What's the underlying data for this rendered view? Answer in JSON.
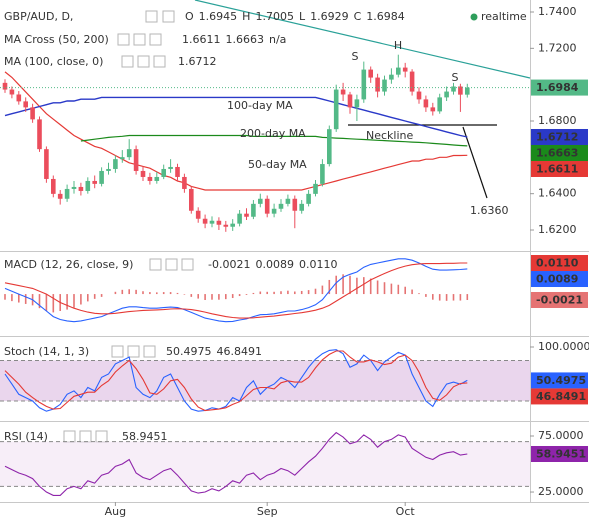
{
  "chart_data": [
    {
      "type": "candlestick",
      "title": "GBP/AUD, D,",
      "status": "realtime",
      "ohlc_keys": [
        "O",
        "H",
        "L",
        "C"
      ],
      "ohlc_last": [
        "1.6945",
        "1.7005",
        "1.6929",
        "1.6984"
      ],
      "indicators": [
        {
          "label": "MA Cross (50, 200)",
          "readouts": [
            "1.6611",
            "1.6663",
            "n/a"
          ]
        },
        {
          "label": "MA (100, close, 0)",
          "readouts": [
            "1.6712"
          ]
        }
      ],
      "categories": [
        null,
        null,
        null,
        null,
        null,
        null,
        null,
        null,
        null,
        null,
        null,
        null,
        null,
        null,
        null,
        null,
        "Aug",
        null,
        null,
        null,
        null,
        null,
        null,
        null,
        null,
        null,
        null,
        null,
        null,
        null,
        null,
        null,
        null,
        null,
        null,
        null,
        null,
        null,
        "Sep",
        null,
        null,
        null,
        null,
        null,
        null,
        null,
        null,
        null,
        null,
        null,
        null,
        null,
        null,
        null,
        null,
        null,
        null,
        null,
        "Oct",
        null,
        null,
        null,
        null,
        null,
        null,
        null,
        null,
        null
      ],
      "open": [
        1.701,
        1.6973,
        1.6946,
        1.6908,
        1.6875,
        1.6809,
        1.6645,
        1.6481,
        1.6399,
        1.6372,
        1.6426,
        1.6437,
        1.6415,
        1.647,
        1.6454,
        1.6525,
        1.6536,
        1.659,
        1.6601,
        1.6645,
        1.6525,
        1.6492,
        1.647,
        1.6492,
        1.6536,
        1.6547,
        1.6492,
        1.6426,
        1.6306,
        1.6262,
        1.6235,
        1.6251,
        1.6229,
        1.6218,
        1.6235,
        1.629,
        1.6273,
        1.6344,
        1.6372,
        1.629,
        1.6317,
        1.6344,
        1.6372,
        1.6306,
        1.6344,
        1.6399,
        1.6454,
        1.6563,
        1.6755,
        1.6973,
        1.6946,
        1.6875,
        1.6919,
        1.7083,
        1.7039,
        1.6962,
        1.7028,
        1.7055,
        1.7094,
        1.7072,
        1.6962,
        1.6919,
        1.6875,
        1.6853,
        1.693,
        1.6962,
        1.699,
        1.6945
      ],
      "high": [
        1.703,
        1.699,
        1.6965,
        1.693,
        1.6895,
        1.6825,
        1.666,
        1.65,
        1.642,
        1.645,
        1.647,
        1.646,
        1.649,
        1.65,
        1.6545,
        1.657,
        1.661,
        1.664,
        1.67,
        1.6665,
        1.655,
        1.6515,
        1.652,
        1.656,
        1.659,
        1.6565,
        1.651,
        1.644,
        1.6325,
        1.6285,
        1.6275,
        1.627,
        1.625,
        1.626,
        1.631,
        1.632,
        1.6365,
        1.64,
        1.639,
        1.6345,
        1.637,
        1.6395,
        1.639,
        1.6365,
        1.642,
        1.6475,
        1.659,
        1.6775,
        1.7,
        1.701,
        1.696,
        1.6945,
        1.7127,
        1.71,
        1.706,
        1.705,
        1.709,
        1.7165,
        1.712,
        1.7085,
        1.6985,
        1.694,
        1.69,
        1.695,
        1.699,
        1.701,
        1.7005,
        1.7005
      ],
      "low": [
        1.6955,
        1.6925,
        1.689,
        1.685,
        1.679,
        1.663,
        1.646,
        1.638,
        1.634,
        1.6355,
        1.64,
        1.639,
        1.64,
        1.643,
        1.644,
        1.6505,
        1.6515,
        1.657,
        1.6585,
        1.6505,
        1.647,
        1.645,
        1.6455,
        1.648,
        1.6515,
        1.647,
        1.6405,
        1.629,
        1.624,
        1.621,
        1.6215,
        1.62,
        1.619,
        1.6195,
        1.622,
        1.6255,
        1.626,
        1.6325,
        1.627,
        1.627,
        1.63,
        1.633,
        1.621,
        1.629,
        1.633,
        1.6385,
        1.644,
        1.655,
        1.674,
        1.691,
        1.684,
        1.68,
        1.69,
        1.701,
        1.693,
        1.694,
        1.7005,
        1.704,
        1.704,
        1.694,
        1.6895,
        1.685,
        1.683,
        1.684,
        1.691,
        1.6945,
        1.685,
        1.6929
      ],
      "close": [
        1.6973,
        1.6946,
        1.6908,
        1.6875,
        1.6809,
        1.6645,
        1.6481,
        1.6399,
        1.6372,
        1.6426,
        1.6437,
        1.6415,
        1.647,
        1.6454,
        1.6525,
        1.6536,
        1.659,
        1.6601,
        1.6645,
        1.6525,
        1.6492,
        1.647,
        1.6492,
        1.6536,
        1.6547,
        1.6492,
        1.6426,
        1.6306,
        1.6262,
        1.6235,
        1.6251,
        1.6229,
        1.6218,
        1.6235,
        1.629,
        1.6273,
        1.6344,
        1.6372,
        1.629,
        1.6317,
        1.6344,
        1.6372,
        1.6306,
        1.6344,
        1.6399,
        1.6454,
        1.6563,
        1.6755,
        1.6973,
        1.6946,
        1.6875,
        1.6919,
        1.7083,
        1.7039,
        1.6962,
        1.7028,
        1.7055,
        1.7094,
        1.7072,
        1.6962,
        1.6919,
        1.6875,
        1.6853,
        1.693,
        1.6962,
        1.699,
        1.6945,
        1.6984
      ],
      "up_color": "#53b987",
      "down_color": "#eb4d5c",
      "ylim": [
        1.609,
        1.7466
      ],
      "yticks": [
        {
          "value": 1.74,
          "label": "1.7400"
        },
        {
          "value": 1.72,
          "label": "1.7200"
        },
        {
          "value": 1.68,
          "label": "1.6800"
        },
        {
          "value": 1.64,
          "label": "1.6400"
        },
        {
          "value": 1.62,
          "label": "1.6200"
        }
      ],
      "series": [
        {
          "name": "50-day MA",
          "color": "#e53935",
          "values": [
            1.707,
            1.704,
            1.7,
            1.696,
            1.692,
            1.688,
            1.684,
            1.681,
            1.678,
            1.675,
            1.672,
            1.67,
            1.668,
            1.666,
            1.665,
            1.663,
            1.661,
            1.659,
            1.657,
            1.656,
            1.655,
            1.654,
            1.652,
            1.65,
            1.649,
            1.647,
            1.646,
            1.644,
            1.643,
            1.642,
            1.642,
            1.642,
            1.642,
            1.642,
            1.642,
            1.642,
            1.642,
            1.642,
            1.642,
            1.642,
            1.642,
            1.642,
            1.642,
            1.642,
            1.643,
            1.644,
            1.645,
            1.646,
            1.647,
            1.648,
            1.649,
            1.65,
            1.651,
            1.652,
            1.653,
            1.654,
            1.655,
            1.656,
            1.657,
            1.658,
            1.658,
            1.659,
            1.659,
            1.66,
            1.66,
            1.661,
            1.661,
            1.6611
          ]
        },
        {
          "name": "200-day MA",
          "color": "#1b8a1b",
          "values": [
            null,
            null,
            null,
            null,
            null,
            null,
            null,
            null,
            null,
            null,
            null,
            1.669,
            1.6695,
            1.67,
            1.6705,
            1.671,
            1.6713,
            1.6716,
            1.672,
            1.672,
            1.672,
            1.672,
            1.672,
            1.672,
            1.672,
            1.672,
            1.672,
            1.672,
            1.672,
            1.672,
            1.672,
            1.672,
            1.672,
            1.672,
            1.672,
            1.672,
            1.6715,
            1.6715,
            1.6715,
            1.6715,
            1.6715,
            1.6715,
            1.6715,
            1.6715,
            1.6715,
            1.6715,
            1.671,
            1.6708,
            1.6706,
            1.6704,
            1.6702,
            1.67,
            1.6698,
            1.6696,
            1.6694,
            1.6692,
            1.669,
            1.6688,
            1.6686,
            1.6684,
            1.6682,
            1.668,
            1.6677,
            1.6674,
            1.6671,
            1.6668,
            1.6665,
            1.6663
          ]
        },
        {
          "name": "100-day MA",
          "color": "#2a39c8",
          "values": [
            1.683,
            1.684,
            1.685,
            1.686,
            1.687,
            1.688,
            1.689,
            1.69,
            1.69,
            1.691,
            1.691,
            1.692,
            1.692,
            1.692,
            1.693,
            1.693,
            1.693,
            1.693,
            1.693,
            1.693,
            1.693,
            1.693,
            1.693,
            1.693,
            1.693,
            1.693,
            1.693,
            1.693,
            1.693,
            1.693,
            1.693,
            1.693,
            1.693,
            1.693,
            1.693,
            1.693,
            1.693,
            1.693,
            1.693,
            1.693,
            1.693,
            1.693,
            1.693,
            1.693,
            1.693,
            1.693,
            1.692,
            1.691,
            1.69,
            1.689,
            1.688,
            1.687,
            1.686,
            1.685,
            1.684,
            1.683,
            1.682,
            1.681,
            1.68,
            1.679,
            1.678,
            1.677,
            1.676,
            1.675,
            1.674,
            1.673,
            1.672,
            1.6712
          ]
        }
      ],
      "annotations": [
        "S",
        "H",
        "S",
        "Neckline",
        "1.6360"
      ]
    },
    {
      "type": "line",
      "title": "MACD (12, 26, close, 9)",
      "readouts": [
        "-0.0021",
        "0.0089",
        "0.0110"
      ],
      "ylim": [
        -0.0145,
        0.0149
      ],
      "series": [
        {
          "color": "#2962ff",
          "values": [
            0.002,
            0.001,
            0.0,
            -0.001,
            -0.002,
            -0.004,
            -0.006,
            -0.008,
            -0.009,
            -0.0095,
            -0.0098,
            -0.0095,
            -0.009,
            -0.0085,
            -0.008,
            -0.007,
            -0.006,
            -0.005,
            -0.0045,
            -0.0045,
            -0.0048,
            -0.005,
            -0.005,
            -0.0048,
            -0.0046,
            -0.0048,
            -0.0055,
            -0.0065,
            -0.0075,
            -0.0085,
            -0.009,
            -0.0095,
            -0.0098,
            -0.0097,
            -0.0092,
            -0.0088,
            -0.008,
            -0.0073,
            -0.0072,
            -0.007,
            -0.0065,
            -0.006,
            -0.006,
            -0.0055,
            -0.0048,
            -0.0038,
            -0.002,
            0.001,
            0.004,
            0.006,
            0.007,
            0.0078,
            0.0095,
            0.0105,
            0.011,
            0.0115,
            0.012,
            0.0125,
            0.0125,
            0.012,
            0.011,
            0.0098,
            0.0088,
            0.0085,
            0.0085,
            0.0086,
            0.0087,
            0.0089
          ]
        },
        {
          "color": "#e53935",
          "values": [
            0.004,
            0.0035,
            0.003,
            0.0025,
            0.002,
            0.001,
            0.0,
            -0.0015,
            -0.003,
            -0.004,
            -0.005,
            -0.0058,
            -0.0064,
            -0.0068,
            -0.007,
            -0.007,
            -0.0068,
            -0.0065,
            -0.0062,
            -0.006,
            -0.0058,
            -0.0057,
            -0.0056,
            -0.0055,
            -0.0053,
            -0.0052,
            -0.0053,
            -0.0055,
            -0.0059,
            -0.0064,
            -0.007,
            -0.0075,
            -0.008,
            -0.0083,
            -0.0085,
            -0.0085,
            -0.0084,
            -0.0082,
            -0.008,
            -0.0078,
            -0.0075,
            -0.0072,
            -0.0069,
            -0.0066,
            -0.0062,
            -0.0057,
            -0.005,
            -0.004,
            -0.0025,
            -0.001,
            0.0005,
            0.002,
            0.0035,
            0.005,
            0.0062,
            0.0073,
            0.0083,
            0.0092,
            0.0099,
            0.0104,
            0.0107,
            0.0108,
            0.0108,
            0.0108,
            0.0109,
            0.0109,
            0.011,
            0.011
          ]
        },
        {
          "type": "histogram",
          "color": "#e57373",
          "values": [
            -0.002,
            -0.0025,
            -0.003,
            -0.0035,
            -0.004,
            -0.005,
            -0.006,
            -0.0065,
            -0.006,
            -0.0055,
            -0.0048,
            -0.0037,
            -0.0026,
            -0.0017,
            -0.001,
            0.0,
            0.0008,
            0.0015,
            0.0017,
            0.0015,
            0.001,
            0.0007,
            0.0006,
            0.0007,
            0.0007,
            0.0004,
            -0.0002,
            -0.001,
            -0.0016,
            -0.0021,
            -0.002,
            -0.002,
            -0.0018,
            -0.0014,
            -0.0007,
            -0.0003,
            0.0004,
            0.0009,
            0.0008,
            0.0008,
            0.001,
            0.0012,
            0.0009,
            0.0011,
            0.0014,
            0.0019,
            0.003,
            0.005,
            0.0065,
            0.007,
            0.0065,
            0.0058,
            0.006,
            0.0055,
            0.0048,
            0.0042,
            0.0037,
            0.0033,
            0.0026,
            0.0016,
            0.0003,
            -0.001,
            -0.002,
            -0.0023,
            -0.0024,
            -0.0023,
            -0.0023,
            -0.0021
          ]
        }
      ]
    },
    {
      "type": "line",
      "title": "Stoch (14, 1, 3)",
      "readouts": [
        "50.4975",
        "46.8491"
      ],
      "ylim": [
        -8.1,
        114.8
      ],
      "yticks": [
        {
          "value": 100,
          "label": "100.0000"
        }
      ],
      "bands": [
        20,
        80
      ],
      "band_color": "#d8b4de",
      "series": [
        {
          "color": "#2962ff",
          "values": [
            60,
            45,
            30,
            25,
            20,
            10,
            5,
            8,
            15,
            30,
            35,
            25,
            40,
            35,
            55,
            60,
            75,
            80,
            85,
            40,
            30,
            25,
            35,
            55,
            60,
            40,
            20,
            8,
            5,
            6,
            10,
            8,
            12,
            25,
            20,
            40,
            50,
            30,
            40,
            45,
            55,
            50,
            40,
            55,
            70,
            82,
            90,
            95,
            96,
            90,
            70,
            75,
            88,
            80,
            65,
            78,
            85,
            92,
            88,
            60,
            40,
            20,
            12,
            30,
            45,
            48,
            45,
            50.4975
          ]
        },
        {
          "color": "#e53935",
          "values": [
            65,
            55,
            45,
            33,
            25,
            18,
            12,
            8,
            9,
            18,
            27,
            30,
            33,
            33,
            43,
            50,
            63,
            72,
            80,
            68,
            52,
            32,
            30,
            38,
            50,
            52,
            40,
            23,
            11,
            6,
            7,
            8,
            10,
            15,
            19,
            28,
            37,
            40,
            40,
            38,
            47,
            50,
            48,
            48,
            55,
            69,
            81,
            89,
            94,
            94,
            85,
            78,
            78,
            81,
            78,
            74,
            76,
            85,
            88,
            80,
            63,
            40,
            24,
            21,
            29,
            41,
            46,
            46.8491
          ]
        }
      ]
    },
    {
      "type": "line",
      "title": "RSI (14)",
      "readouts": [
        "58.9451"
      ],
      "ylim": [
        16.1,
        87.5
      ],
      "yticks": [
        {
          "value": 75,
          "label": "75.0000"
        },
        {
          "value": 25,
          "label": "25.0000"
        }
      ],
      "bands": [
        30,
        70
      ],
      "band_color": "#f0e0f2",
      "series": [
        {
          "color": "#8e24aa",
          "values": [
            48,
            45,
            42,
            40,
            37,
            30,
            25,
            22,
            22,
            28,
            30,
            28,
            35,
            33,
            40,
            42,
            48,
            50,
            54,
            42,
            38,
            36,
            40,
            44,
            46,
            40,
            33,
            26,
            24,
            25,
            28,
            26,
            30,
            35,
            33,
            40,
            42,
            36,
            40,
            42,
            46,
            44,
            40,
            46,
            52,
            57,
            64,
            72,
            78,
            74,
            68,
            70,
            76,
            72,
            65,
            70,
            72,
            76,
            74,
            64,
            60,
            56,
            54,
            58,
            60,
            61,
            58,
            58.9451
          ]
        }
      ]
    }
  ]
}
